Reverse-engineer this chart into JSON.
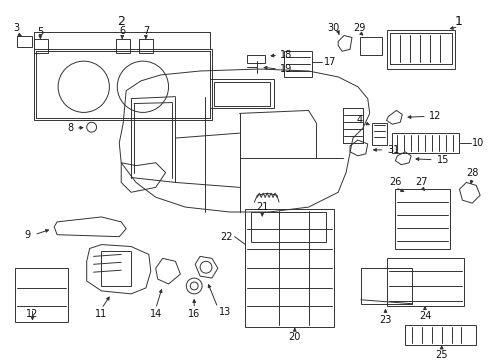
{
  "bg_color": "#ffffff",
  "lc": "#333333",
  "lw": 0.7,
  "figsize": [
    4.89,
    3.6
  ],
  "dpi": 100
}
